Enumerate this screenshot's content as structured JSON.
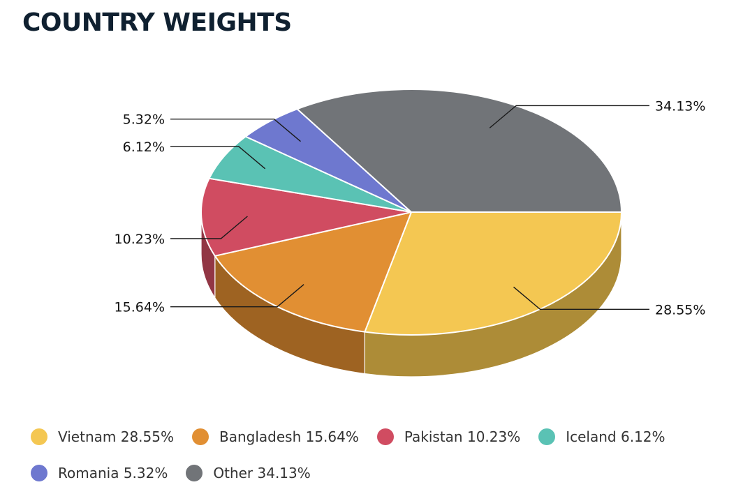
{
  "title": "COUNTRY WEIGHTS",
  "chart_data": {
    "type": "pie",
    "title": "COUNTRY WEIGHTS",
    "slices": [
      {
        "name": "Vietnam",
        "value": 28.55,
        "label": "28.55%",
        "legend": "Vietnam 28.55%",
        "color": "#F4C752",
        "side": "#AD8C37"
      },
      {
        "name": "Bangladesh",
        "value": 15.64,
        "label": "15.64%",
        "legend": "Bangladesh 15.64%",
        "color": "#E18F33",
        "side": "#9E6322"
      },
      {
        "name": "Pakistan",
        "value": 10.23,
        "label": "10.23%",
        "legend": "Pakistan 10.23%",
        "color": "#D04C61",
        "side": "#923644"
      },
      {
        "name": "Iceland",
        "value": 6.12,
        "label": "6.12%",
        "legend": "Iceland 6.12%",
        "color": "#5AC2B4",
        "side": "#3E887E"
      },
      {
        "name": "Romania",
        "value": 5.32,
        "label": "5.32%",
        "legend": "Romania 5.32%",
        "color": "#6E78CF",
        "side": "#4D5491"
      },
      {
        "name": "Other",
        "value": 34.13,
        "label": "34.13%",
        "legend": "Other 34.13%",
        "color": "#717478",
        "side": "#4F5154"
      }
    ],
    "legend_position": "bottom",
    "style": "3d-pie"
  }
}
